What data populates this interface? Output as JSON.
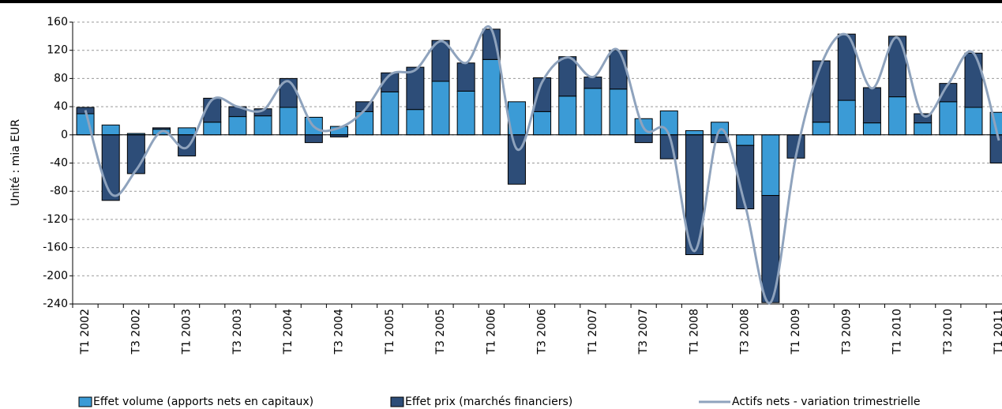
{
  "chart_data": {
    "type": "bar",
    "y_label": "Unité : mia EUR",
    "categories": [
      "T1 2002",
      null,
      "T3 2002",
      null,
      "T1 2003",
      null,
      "T3 2003",
      null,
      "T1 2004",
      null,
      "T3 2004",
      null,
      "T1 2005",
      null,
      "T3 2005",
      null,
      "T1 2006",
      null,
      "T3 2006",
      null,
      "T1 2007",
      null,
      "T3 2007",
      null,
      "T1 2008",
      null,
      "T3 2008",
      null,
      "T1 2009",
      null,
      "T3 2009",
      null,
      "T1 2010",
      null,
      "T3 2010",
      null,
      "T1 2011"
    ],
    "series": [
      {
        "name": "Effet volume (apports nets en capitaux)",
        "type": "bar",
        "color": "#3b9bd6",
        "values": [
          30,
          14,
          2,
          8,
          10,
          18,
          26,
          27,
          39,
          25,
          12,
          33,
          61,
          36,
          76,
          62,
          107,
          47,
          33,
          55,
          66,
          65,
          23,
          34,
          6,
          18,
          -15,
          -86,
          0,
          18,
          49,
          17,
          54,
          17,
          47,
          39,
          32
        ]
      },
      {
        "name": "Effet prix (marchés financiers)",
        "type": "bar",
        "color": "#2d4d78",
        "values": [
          9,
          -93,
          -55,
          2,
          -30,
          34,
          14,
          10,
          41,
          -11,
          -3,
          14,
          27,
          60,
          58,
          40,
          43,
          -70,
          48,
          56,
          16,
          55,
          -11,
          -34,
          -170,
          -11,
          -90,
          -152,
          -33,
          87,
          94,
          50,
          86,
          13,
          26,
          77,
          -40
        ]
      },
      {
        "name": "Actifs nets - variation trimestrielle",
        "type": "line",
        "color": "#8fa3bd",
        "values": [
          35,
          -83,
          -50,
          5,
          -18,
          50,
          40,
          35,
          76,
          12,
          10,
          35,
          85,
          92,
          133,
          102,
          150,
          -20,
          75,
          110,
          82,
          120,
          10,
          0,
          -165,
          7,
          -100,
          -238,
          -30,
          100,
          142,
          66,
          138,
          28,
          72,
          116,
          -8
        ]
      }
    ],
    "ylim": [
      -240,
      160
    ],
    "yticks": [
      -240,
      -200,
      -160,
      -120,
      -80,
      -40,
      0,
      40,
      80,
      120,
      160
    ],
    "grid": true,
    "stacked": true,
    "legend": "bottom"
  }
}
